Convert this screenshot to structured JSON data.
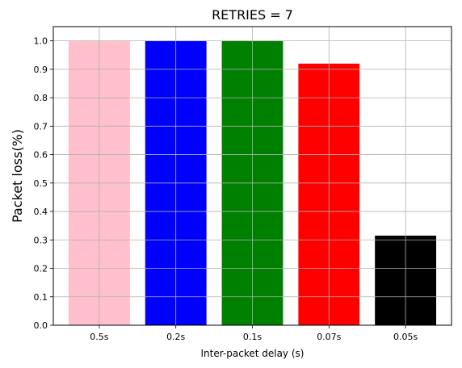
{
  "chart_data": {
    "type": "bar",
    "title": "RETRIES = 7",
    "xlabel": "Inter-packet delay (s)",
    "ylabel": "Packet loss(%)",
    "categories": [
      "0.5s",
      "0.2s",
      "0.1s",
      "0.07s",
      "0.05s"
    ],
    "values": [
      1.0,
      1.0,
      1.0,
      0.92,
      0.315
    ],
    "colors": [
      "#ffc0cb",
      "#0000ff",
      "#008000",
      "#ff0000",
      "#000000"
    ],
    "ylim": [
      0,
      1.05
    ],
    "yticks": [
      "0.0",
      "0.1",
      "0.2",
      "0.3",
      "0.4",
      "0.5",
      "0.6",
      "0.7",
      "0.8",
      "0.9",
      "1.0"
    ],
    "grid": true,
    "legend": "none"
  }
}
